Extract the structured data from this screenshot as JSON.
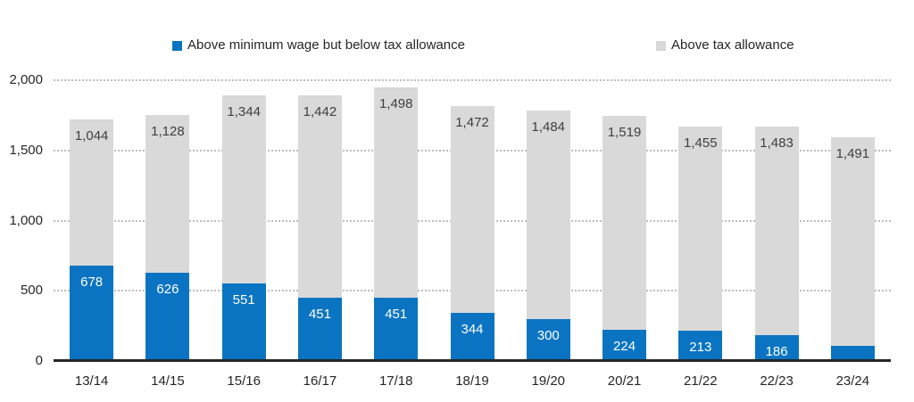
{
  "chart_data": {
    "type": "bar",
    "subtype": "stacked-vertical",
    "title": "",
    "categories": [
      "13/14",
      "14/15",
      "15/16",
      "16/17",
      "17/18",
      "18/19",
      "19/20",
      "20/21",
      "21/22",
      "22/23",
      "23/24"
    ],
    "series": [
      {
        "name": "Above minimum wage but below tax allowance",
        "color": "#0b74c2",
        "label_color": "#ffffff",
        "values": [
          678,
          626,
          551,
          451,
          451,
          344,
          300,
          224,
          213,
          186,
          105
        ]
      },
      {
        "name": "Above tax allowance",
        "color": "#d9d9d9",
        "label_color": "#3f3f3f",
        "values": [
          1044,
          1128,
          1344,
          1442,
          1498,
          1472,
          1484,
          1519,
          1455,
          1483,
          1491
        ]
      }
    ],
    "xlabel": "",
    "ylabel": "",
    "y_axis": {
      "min": 0,
      "max": 2000,
      "tick_interval": 500,
      "tick_values": [
        0,
        500,
        1000,
        1500,
        2000
      ],
      "tick_labels": [
        "0",
        "500",
        "1,000",
        "1,500",
        "2,000"
      ]
    },
    "grid": "horizontal-dotted",
    "grid_color": "#bdbdbd",
    "axis_color": "#262626",
    "legend_position": "top-center",
    "data_labels": "inside-end"
  }
}
